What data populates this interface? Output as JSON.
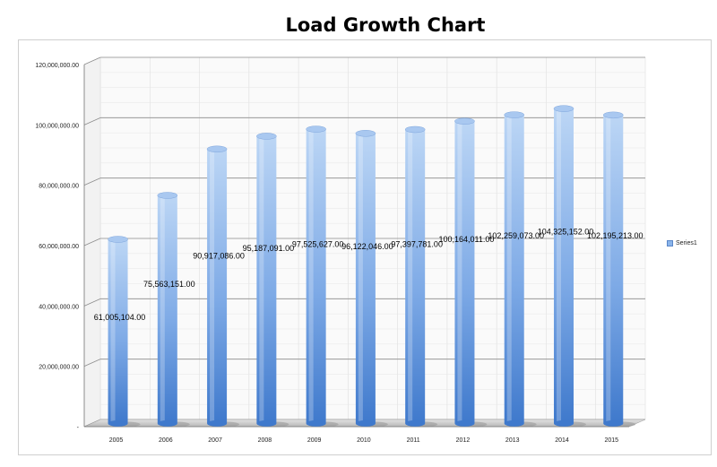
{
  "colors": {
    "bar_light": "#bcd6f5",
    "bar_mid": "#7eaae6",
    "bar_dark": "#3f79cc",
    "grid": "#8c8c8c"
  },
  "chart_data": {
    "type": "bar",
    "title": "Load Growth Chart",
    "xlabel": "",
    "ylabel": "",
    "categories": [
      "2005",
      "2006",
      "2007",
      "2008",
      "2009",
      "2010",
      "2011",
      "2012",
      "2013",
      "2014",
      "2015"
    ],
    "series": [
      {
        "name": "Series1",
        "values": [
          61005104,
          75563151,
          90917086,
          95187091,
          97525627,
          96122046,
          97397781,
          100164011,
          102259073,
          104325152,
          102195213
        ]
      }
    ],
    "data_labels": [
      "61,005,104.00",
      "75,563,151.00",
      "90,917,086.00",
      "95,187,091.00",
      "97,525,627.00",
      "96,122,046.00",
      "97,397,781.00",
      "100,164,011.00",
      "102,259,073.00",
      "104,325,152.00",
      "102,195,213.00"
    ],
    "ylim": [
      0,
      120000000
    ],
    "yticks": [
      "-",
      "20,000,000.00",
      "40,000,000.00",
      "60,000,000.00",
      "80,000,000.00",
      "100,000,000.00",
      "120,000,000.00"
    ],
    "grid": true,
    "legend": "right"
  }
}
